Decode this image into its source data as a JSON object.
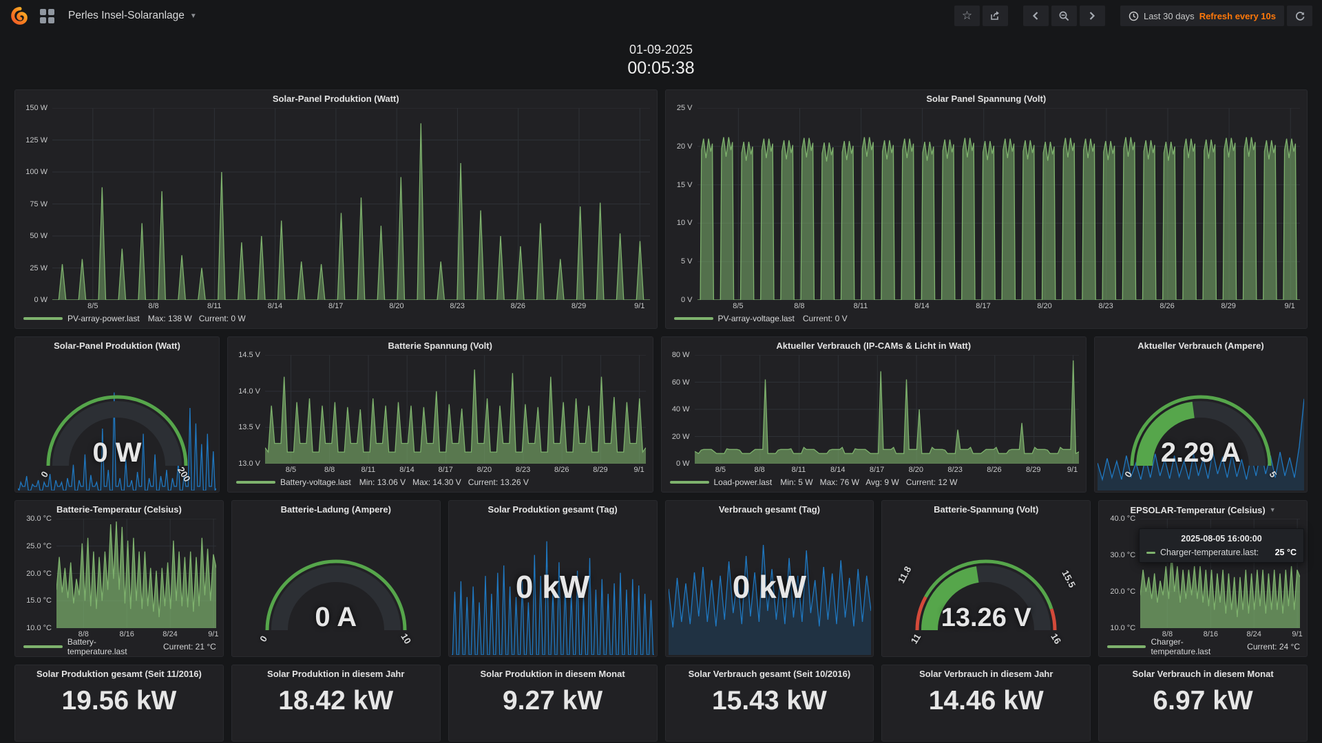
{
  "navbar": {
    "title": "Perles Insel-Solaranlage",
    "time_range": "Last 30 days",
    "refresh_text": "Refresh every 10s"
  },
  "clock": {
    "date": "01-09-2025",
    "time": "00:05:38"
  },
  "colors": {
    "background": "#161719",
    "panel": "#212124",
    "green": "#7eb26d",
    "blue": "#1f78c1",
    "gauge_green": "#56a64b",
    "red": "#d44a3a",
    "orange": "#ff780a",
    "grid": "#2e3136"
  },
  "tooltip": {
    "time": "2025-08-05 16:00:00",
    "series": "Charger-temperature.last:",
    "value": "25 °C"
  },
  "panels": {
    "pv_power": {
      "title": "Solar-Panel Produktion (Watt)",
      "yaxis_w": 46,
      "yticks": [
        "150 W",
        "125 W",
        "100 W",
        "75 W",
        "50 W",
        "25 W",
        "0 W"
      ],
      "xticks": [
        "8/5",
        "8/8",
        "8/11",
        "8/14",
        "8/17",
        "8/20",
        "8/23",
        "8/26",
        "8/29",
        "9/1"
      ],
      "xtick_days": [
        2,
        5,
        8,
        11,
        14,
        17,
        20,
        23,
        26,
        29
      ],
      "span_days": 29.5,
      "legend": {
        "name": "PV-array-power.last",
        "stats": "Max: 138 W   Current: 0 W"
      },
      "series": {
        "pattern": "spike",
        "color": "#7eb26d",
        "fill": 0.5,
        "ymin": 0,
        "ymax": 150,
        "base": 0,
        "spike_hw": 0.18,
        "peaks": [
          28,
          32,
          88,
          40,
          60,
          85,
          35,
          25,
          100,
          45,
          50,
          62,
          30,
          28,
          68,
          80,
          58,
          96,
          138,
          30,
          107,
          70,
          50,
          42,
          60,
          32,
          73,
          76,
          52,
          46
        ]
      }
    },
    "pv_voltage": {
      "title": "Solar Panel Spannung (Volt)",
      "yaxis_w": 38,
      "yticks": [
        "25 V",
        "20 V",
        "15 V",
        "10 V",
        "5 V",
        "0 V"
      ],
      "xticks": [
        "8/5",
        "8/8",
        "8/11",
        "8/14",
        "8/17",
        "8/20",
        "8/23",
        "8/26",
        "8/29",
        "9/1"
      ],
      "xtick_days": [
        2,
        5,
        8,
        11,
        14,
        17,
        20,
        23,
        26,
        29
      ],
      "span_days": 29.5,
      "legend": {
        "name": "PV-array-voltage.last",
        "stats": "Current: 0 V"
      },
      "series": {
        "pattern": "block",
        "color": "#7eb26d",
        "fill": 0.55,
        "ymin": 0,
        "ymax": 25,
        "peaks": [
          21,
          21.2,
          20.6,
          21,
          20.8,
          21.1,
          20.5,
          20.7,
          21.2,
          20.8,
          21,
          20.6,
          20.9,
          21.1,
          20.7,
          21,
          20.8,
          20.6,
          21.1,
          21,
          20.7,
          21.2,
          20.8,
          20.6,
          21,
          20.9,
          21.1,
          21.2,
          20.8,
          21
        ]
      }
    },
    "batt_voltage": {
      "title": "Batterie Spannung (Volt)",
      "yaxis_w": 46,
      "yticks": [
        "14.5 V",
        "14.0 V",
        "13.5 V",
        "13.0 V"
      ],
      "xticks": [
        "8/5",
        "8/8",
        "8/11",
        "8/14",
        "8/17",
        "8/20",
        "8/23",
        "8/26",
        "8/29",
        "9/1"
      ],
      "xtick_days": [
        2,
        5,
        8,
        11,
        14,
        17,
        20,
        23,
        26,
        29
      ],
      "span_days": 29.5,
      "legend": {
        "name": "Battery-voltage.last",
        "stats": "Min: 13.06 V   Max: 14.30 V   Current: 13.26 V"
      },
      "series": {
        "pattern": "spike",
        "color": "#7eb26d",
        "fill": 0.6,
        "ymin": 13.0,
        "ymax": 14.5,
        "base": 13.22,
        "jitter": 0.06,
        "spike_hw": 0.25,
        "peaks": [
          13.8,
          14.2,
          13.85,
          13.9,
          13.8,
          13.85,
          13.78,
          13.75,
          13.9,
          13.8,
          13.85,
          13.8,
          13.78,
          14.0,
          13.82,
          13.76,
          14.3,
          13.9,
          13.8,
          14.25,
          13.82,
          13.78,
          14.2,
          13.85,
          13.9,
          13.8,
          14.2,
          13.92,
          13.85,
          13.9
        ]
      }
    },
    "load_power": {
      "title": "Aktueller Verbrauch (IP-CAMs & Licht in Watt)",
      "yaxis_w": 40,
      "yticks": [
        "80 W",
        "60 W",
        "40 W",
        "20 W",
        "0 W"
      ],
      "xticks": [
        "8/5",
        "8/8",
        "8/11",
        "8/14",
        "8/17",
        "8/20",
        "8/23",
        "8/26",
        "8/29",
        "9/1"
      ],
      "xtick_days": [
        2,
        5,
        8,
        11,
        14,
        17,
        20,
        23,
        26,
        29
      ],
      "span_days": 29.5,
      "legend": {
        "name": "Load-power.last",
        "stats": "Min: 5 W   Max: 76 W   Avg: 9 W   Current: 12 W"
      },
      "series": {
        "pattern": "spike",
        "color": "#7eb26d",
        "fill": 0.6,
        "ymin": 0,
        "ymax": 80,
        "base": 9,
        "jitter": 1.5,
        "spike_hw": 0.2,
        "peaks": [
          10,
          9,
          11,
          10,
          9,
          62,
          10,
          11,
          12,
          9,
          10,
          12,
          11,
          9,
          68,
          12,
          62,
          40,
          12,
          10,
          25,
          12,
          9,
          12,
          10,
          30,
          12,
          10,
          12,
          76
        ]
      }
    },
    "batt_temp": {
      "title": "Batterie-Temperatur (Celsius)",
      "yaxis_w": 52,
      "yticks": [
        "30.0 °C",
        "25.0 °C",
        "20.0 °C",
        "15.0 °C",
        "10.0 °C"
      ],
      "xticks": [
        "8/8",
        "8/16",
        "8/24",
        "9/1"
      ],
      "xtick_days": [
        5,
        13,
        21,
        29
      ],
      "span_days": 29.5,
      "legend": {
        "name": "Battery-temperature.last",
        "stats": "Current: 21 °C"
      },
      "series": {
        "pattern": "wave",
        "color": "#7eb26d",
        "fill": 0.7,
        "ymin": 10,
        "ymax": 30,
        "values": [
          17,
          23,
          16.5,
          21,
          15.5,
          22,
          14.5,
          19,
          16,
          25.5,
          15,
          26.5,
          14,
          24,
          13.5,
          23,
          15,
          24,
          17,
          29,
          19,
          29.5,
          17,
          28.5,
          14.5,
          26,
          13.5,
          26.5,
          15,
          24,
          13.5,
          24,
          14,
          21,
          13,
          20.5,
          12,
          21,
          14,
          22,
          13.5,
          26,
          15,
          24,
          14,
          23,
          13.8,
          24,
          13,
          23,
          14,
          26.5,
          16,
          24.5,
          15,
          23.5,
          21
        ]
      }
    },
    "epsolar_temp": {
      "title": "EPSOLAR-Temperatur (Celsius)",
      "yaxis_w": 52,
      "yticks": [
        "40.0 °C",
        "30.0 °C",
        "20.0 °C",
        "10.0 °C"
      ],
      "xticks": [
        "8/8",
        "8/16",
        "8/24",
        "9/1"
      ],
      "xtick_days": [
        5,
        13,
        21,
        29
      ],
      "span_days": 29.5,
      "legend": {
        "name": "Charger-temperature.last",
        "stats": "Current: 24 °C"
      },
      "series": {
        "pattern": "wave",
        "color": "#7eb26d",
        "fill": 0.7,
        "ymin": 10,
        "ymax": 40,
        "values": [
          19,
          26,
          20,
          24,
          18,
          25,
          17,
          23,
          19,
          27,
          18,
          31,
          20,
          27,
          17,
          26,
          18,
          26,
          19,
          27,
          18,
          27,
          17,
          26,
          16,
          26,
          15,
          25,
          17,
          26,
          14,
          25,
          15,
          24,
          13,
          24,
          15,
          26,
          14,
          25,
          15,
          26,
          16,
          26,
          14,
          25,
          15,
          26,
          15,
          25,
          14,
          26,
          16,
          27,
          15,
          26,
          24
        ]
      }
    },
    "solar_gauge": {
      "title": "Solar-Panel Produktion (Watt)",
      "value": "0 W",
      "frac": 0,
      "labels": [
        {
          "text": "0",
          "pos": "bl"
        },
        {
          "text": "200",
          "pos": "br"
        }
      ],
      "spark_h": 150,
      "spark": {
        "pattern": "spike",
        "color": "#1f78c1",
        "fill": 0.1,
        "ymin": 0,
        "ymax": 100,
        "base": 2,
        "jitter": 2,
        "spike_hw": 0.3,
        "peaks": [
          8,
          14,
          6,
          10,
          8,
          16,
          10,
          8,
          12,
          25,
          10,
          35,
          15,
          8,
          60,
          20,
          95,
          12,
          30,
          10,
          18,
          55,
          12,
          35,
          14,
          20,
          12,
          28,
          15,
          80,
          65,
          45,
          55,
          38
        ]
      }
    },
    "ampere_gauge": {
      "title": "Aktueller Verbrauch (Ampere)",
      "value": "2.29 A",
      "frac": 0.458,
      "labels": [
        {
          "text": "0",
          "pos": "bl"
        },
        {
          "text": "5",
          "pos": "br"
        }
      ],
      "spark_h": 140,
      "spark": {
        "pattern": "wave",
        "color": "#1f78c1",
        "fill": 0.2,
        "ymin": 0,
        "ymax": 105,
        "values": [
          30,
          12,
          35,
          14,
          32,
          12,
          38,
          15,
          30,
          12,
          36,
          14,
          40,
          16,
          34,
          13,
          38,
          15,
          32,
          12,
          40,
          16,
          35,
          13,
          42,
          18,
          36,
          14,
          40,
          15,
          34,
          12,
          38,
          16,
          44,
          18,
          38,
          14,
          42,
          16,
          36,
          14,
          48,
          100
        ]
      }
    },
    "ladung_gauge": {
      "title": "Batterie-Ladung (Ampere)",
      "value": "0 A",
      "frac": 0,
      "labels": [
        {
          "text": "0",
          "pos": "bl"
        },
        {
          "text": "10",
          "pos": "br"
        }
      ]
    },
    "battv_gauge": {
      "title": "Batterie-Spannung (Volt)",
      "value": "13.26 V",
      "frac": 0.452,
      "labels": [
        {
          "text": "11.8",
          "pos": "l1"
        },
        {
          "text": "11",
          "pos": "bl"
        },
        {
          "text": "15.5",
          "pos": "r1"
        },
        {
          "text": "16",
          "pos": "br"
        }
      ],
      "thresholds": [
        {
          "from": 0,
          "to": 0.16,
          "color": "#d44a3a"
        },
        {
          "from": 0.16,
          "to": 0.9,
          "color": "#56a64b"
        },
        {
          "from": 0.9,
          "to": 1,
          "color": "#d44a3a"
        }
      ]
    },
    "solar_day": {
      "title": "Solar Produktion gesamt (Tag)",
      "value": "0 kW",
      "spark_h": 176,
      "spark": {
        "pattern": "spike",
        "color": "#1f78c1",
        "fill": 0.12,
        "ymin": 0,
        "ymax": 115,
        "base": 0,
        "spike_hw": 0.34,
        "peaks": [
          60,
          70,
          55,
          65,
          50,
          75,
          58,
          78,
          85,
          65,
          55,
          70,
          50,
          95,
          75,
          108,
          62,
          88,
          68,
          58,
          80,
          55,
          92,
          62,
          72,
          58,
          68,
          78,
          62,
          72,
          66,
          58,
          52
        ]
      }
    },
    "verbrauch_day": {
      "title": "Verbrauch gesamt (Tag)",
      "value": "0 kW",
      "spark_h": 176,
      "spark": {
        "pattern": "wave",
        "color": "#1f78c1",
        "fill": 0.2,
        "ymin": 0,
        "ymax": 110,
        "values": [
          60,
          25,
          70,
          30,
          65,
          28,
          75,
          35,
          80,
          30,
          68,
          26,
          72,
          32,
          85,
          38,
          70,
          28,
          90,
          35,
          75,
          30,
          100,
          40,
          78,
          32,
          70,
          28,
          88,
          34,
          72,
          30,
          95,
          38,
          68,
          26,
          80,
          32,
          74,
          28,
          86,
          34,
          70,
          26,
          78,
          30,
          72,
          40
        ]
      }
    }
  },
  "stats_row": [
    {
      "title": "Solar Produktion gesamt (Seit 11/2016)",
      "value": "19.56 kW"
    },
    {
      "title": "Solar Produktion in diesem Jahr",
      "value": "18.42 kW"
    },
    {
      "title": "Solar Produktion in diesem Monat",
      "value": "9.27 kW"
    },
    {
      "title": "Solar Verbrauch gesamt (Seit 10/2016)",
      "value": "15.43 kW"
    },
    {
      "title": "Solar Verbrauch in diesem Jahr",
      "value": "14.46 kW"
    },
    {
      "title": "Solar Verbrauch in diesem Monat",
      "value": "6.97 kW"
    }
  ]
}
